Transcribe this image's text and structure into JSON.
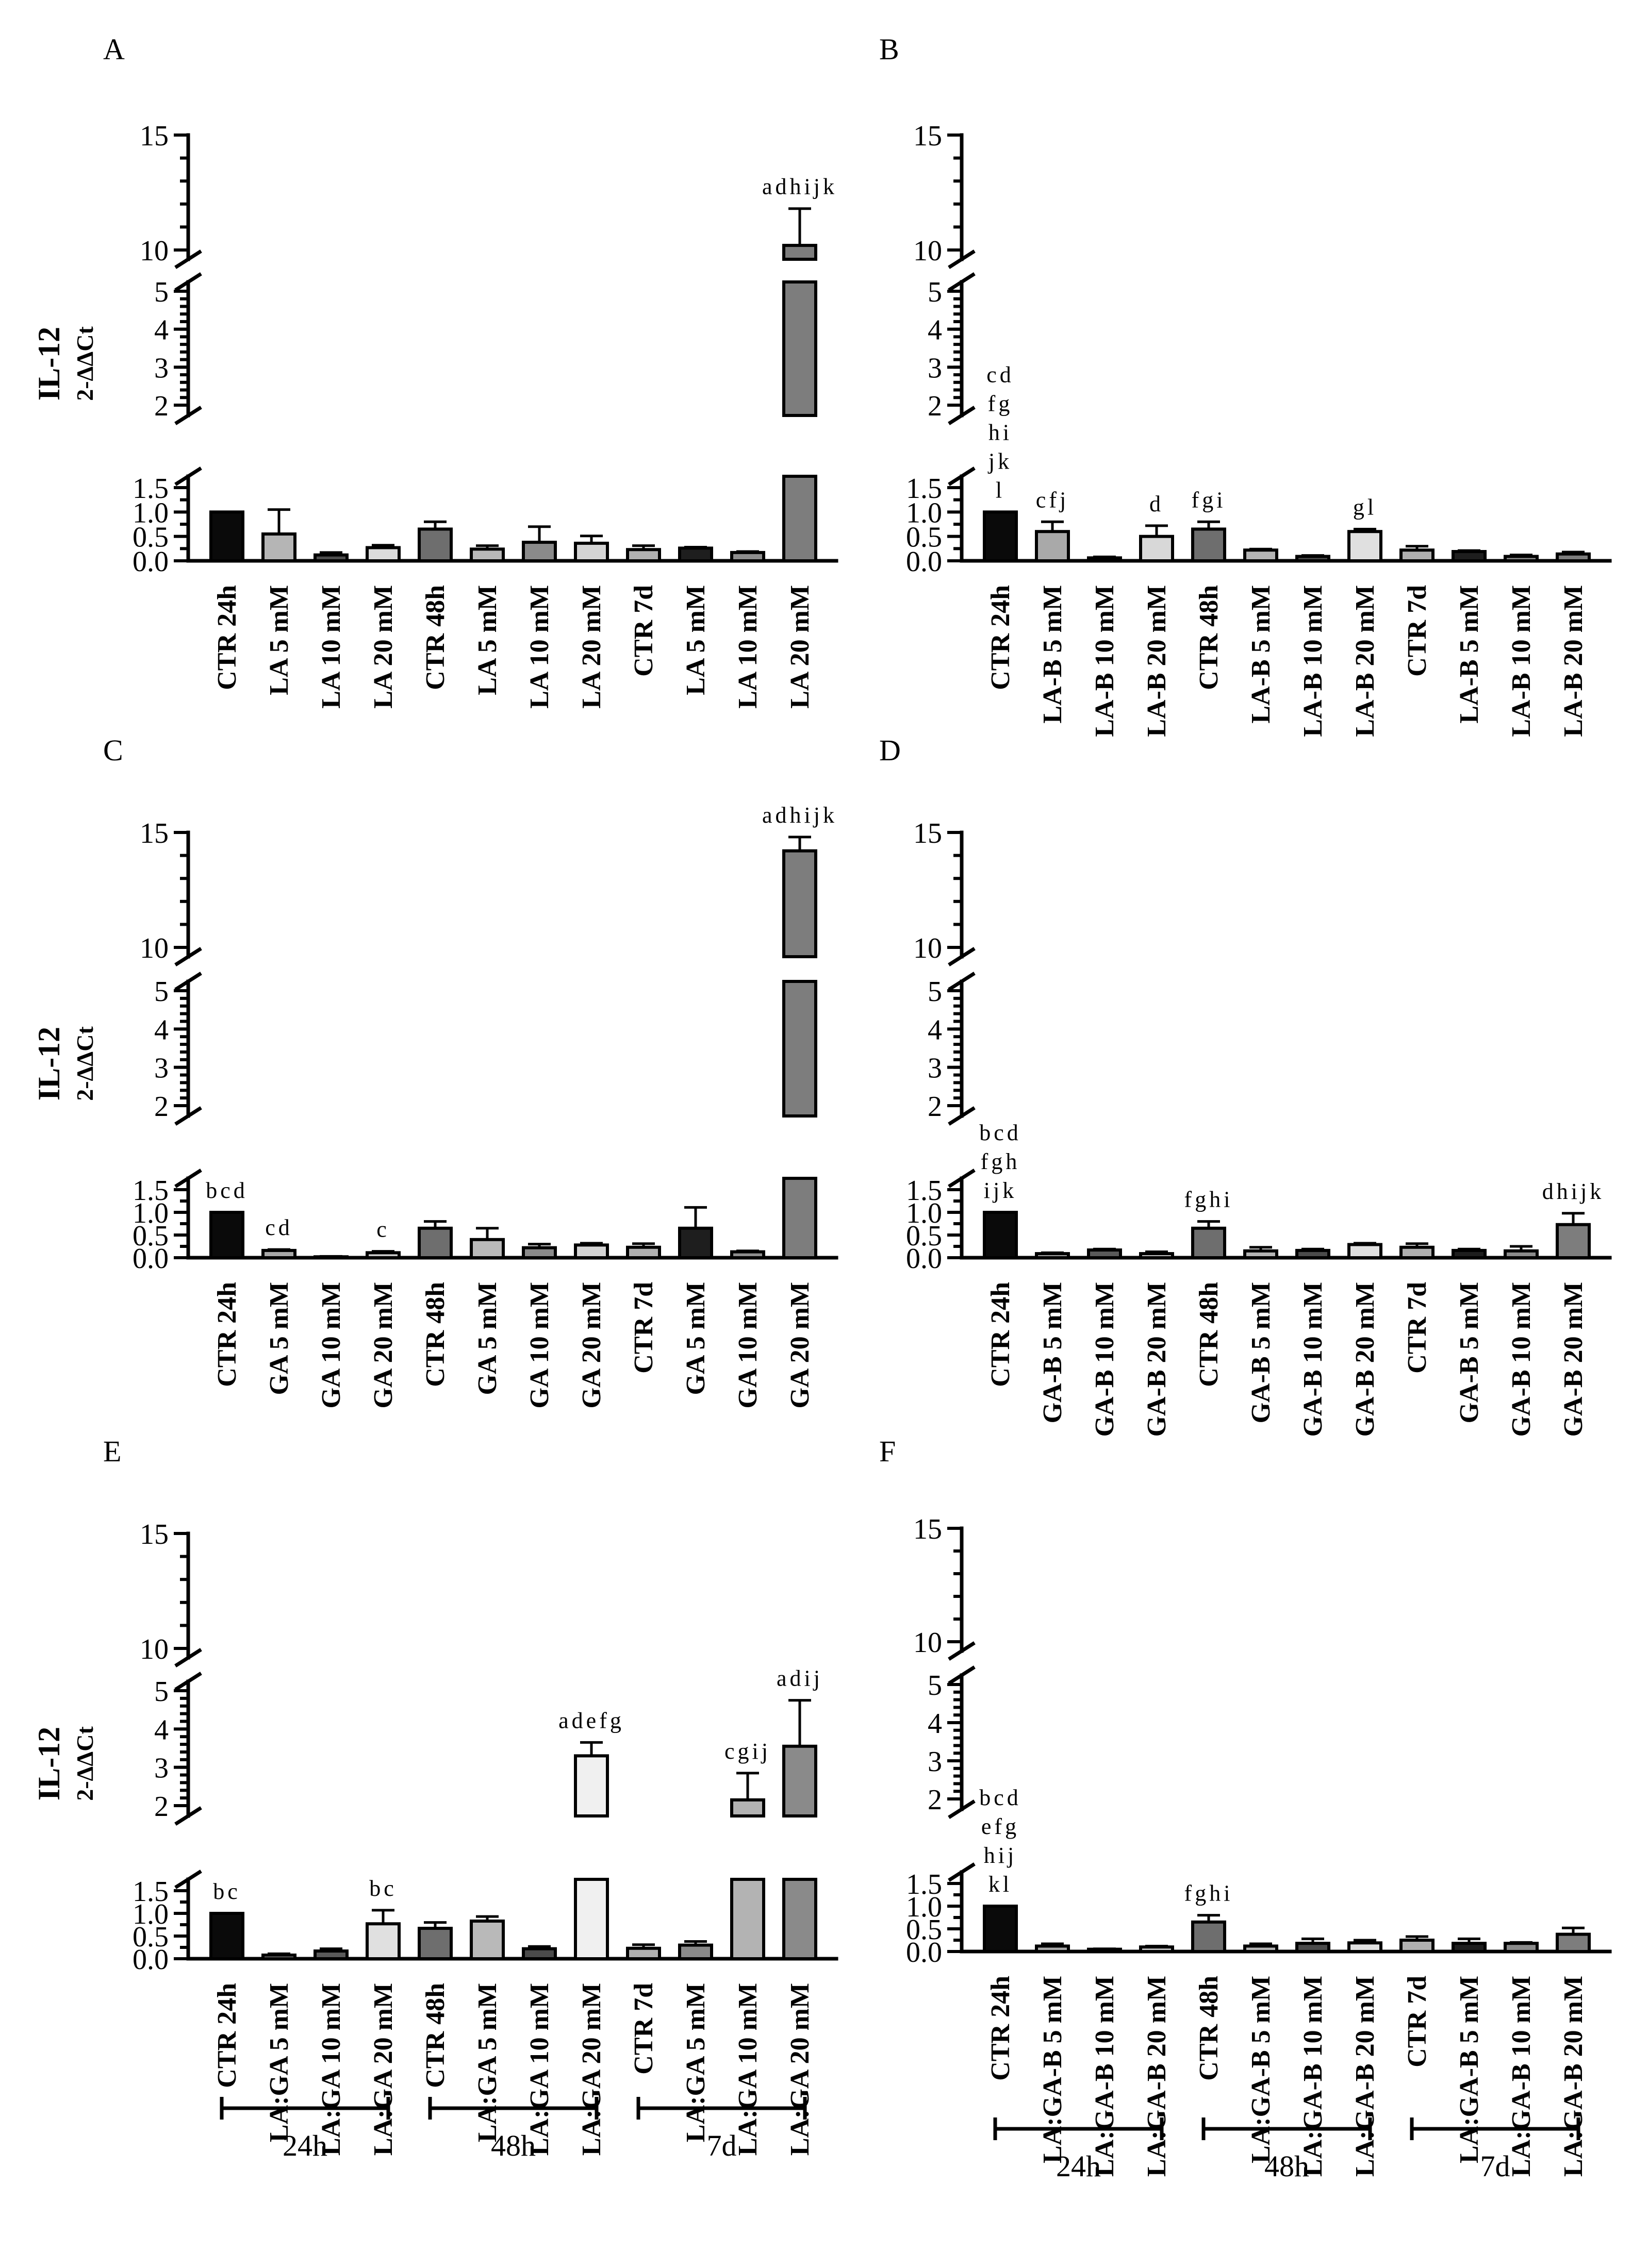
{
  "chart_data": [
    {
      "panel_label": "A",
      "type": "bar",
      "ylabel": "IL-12",
      "ylabel_sub": "2-ΔΔCt",
      "y_ticks": [
        "0.0",
        "0.5",
        "1.0",
        "1.5",
        "2",
        "3",
        "4",
        "5",
        "10",
        "15"
      ],
      "ylim": [
        0,
        15
      ],
      "y_axis_break": true,
      "categories": [
        "CTR 24h",
        "LA 5 mM",
        "LA 10 mM",
        "LA 20 mM",
        "CTR 48h",
        "LA 5 mM",
        "LA 10 mM",
        "LA 20 mM",
        "CTR 7d",
        "LA 5 mM",
        "LA 10 mM",
        "LA 20 mM"
      ],
      "values": [
        1.0,
        0.55,
        0.12,
        0.27,
        0.65,
        0.24,
        0.38,
        0.36,
        0.23,
        0.26,
        0.17,
        10.2
      ],
      "errors": [
        0,
        0.5,
        0.05,
        0.05,
        0.15,
        0.07,
        0.32,
        0.15,
        0.08,
        0.02,
        0.02,
        1.6
      ],
      "colors": [
        "#0a0a0a",
        "#b5b5b5",
        "#4d4d4d",
        "#dcdcdc",
        "#6e6e6e",
        "#b9b9b9",
        "#8a8a8a",
        "#d4d4d4",
        "#b0b0b0",
        "#1e1e1e",
        "#8e8e8e",
        "#7d7d7d"
      ],
      "annotations": [
        "",
        "",
        "",
        "",
        "",
        "",
        "",
        "",
        "",
        "",
        "",
        "adhijk"
      ],
      "groups": []
    },
    {
      "panel_label": "B",
      "type": "bar",
      "ylabel": "",
      "ylabel_sub": "",
      "y_ticks": [
        "0.0",
        "0.5",
        "1.0",
        "1.5",
        "2",
        "3",
        "4",
        "5",
        "10",
        "15"
      ],
      "ylim": [
        0,
        15
      ],
      "y_axis_break": true,
      "categories": [
        "CTR 24h",
        "LA-B 5 mM",
        "LA-B 10 mM",
        "LA-B 20 mM",
        "CTR 48h",
        "LA-B 5 mM",
        "LA-B 10 mM",
        "LA-B 20 mM",
        "CTR 7d",
        "LA-B 5 mM",
        "LA-B 10 mM",
        "LA-B 20 mM"
      ],
      "values": [
        1.0,
        0.6,
        0.06,
        0.5,
        0.65,
        0.22,
        0.09,
        0.6,
        0.22,
        0.19,
        0.09,
        0.14
      ],
      "errors": [
        0,
        0.2,
        0.02,
        0.22,
        0.15,
        0.02,
        0.02,
        0.05,
        0.08,
        0.02,
        0.03,
        0.04
      ],
      "colors": [
        "#0a0a0a",
        "#a9a9a9",
        "#5a5a5a",
        "#d8d8d8",
        "#6e6e6e",
        "#b5b5b5",
        "#4b4b4b",
        "#e0e0e0",
        "#b0b0b0",
        "#1e1e1e",
        "#8a8a8a",
        "#7d7d7d"
      ],
      "annotations": [
        "cd\nfg\nhi\njk\nl",
        "cfj",
        "",
        "d",
        "fgi",
        "",
        "",
        "gl",
        "",
        "",
        "",
        ""
      ],
      "groups": []
    },
    {
      "panel_label": "C",
      "type": "bar",
      "ylabel": "IL-12",
      "ylabel_sub": "2-ΔΔCt",
      "y_ticks": [
        "0.0",
        "0.5",
        "1.0",
        "1.5",
        "2",
        "3",
        "4",
        "5",
        "10",
        "15"
      ],
      "ylim": [
        0,
        15
      ],
      "y_axis_break": true,
      "categories": [
        "CTR 24h",
        "GA 5 mM",
        "GA 10 mM",
        "GA 20 mM",
        "CTR 48h",
        "GA 5 mM",
        "GA 10 mM",
        "GA 20 mM",
        "CTR 7d",
        "GA 5 mM",
        "GA 10 mM",
        "GA 20 mM"
      ],
      "values": [
        1.0,
        0.16,
        0.02,
        0.11,
        0.65,
        0.4,
        0.22,
        0.28,
        0.23,
        0.65,
        0.13,
        14.2
      ],
      "errors": [
        0,
        0.02,
        0.01,
        0.03,
        0.15,
        0.25,
        0.08,
        0.04,
        0.08,
        0.46,
        0.02,
        0.6
      ],
      "colors": [
        "#0a0a0a",
        "#a9a9a9",
        "#5a5a5a",
        "#c8c8c8",
        "#6e6e6e",
        "#b9b9b9",
        "#8a8a8a",
        "#d4d4d4",
        "#b0b0b0",
        "#1e1e1e",
        "#8e8e8e",
        "#7d7d7d"
      ],
      "annotations": [
        "bcd",
        "cd",
        "",
        "c",
        "",
        "",
        "",
        "",
        "",
        "",
        "",
        "adhijk"
      ],
      "groups": []
    },
    {
      "panel_label": "D",
      "type": "bar",
      "ylabel": "",
      "ylabel_sub": "",
      "y_ticks": [
        "0.0",
        "0.5",
        "1.0",
        "1.5",
        "2",
        "3",
        "4",
        "5",
        "10",
        "15"
      ],
      "ylim": [
        0,
        15
      ],
      "y_axis_break": true,
      "categories": [
        "CTR 24h",
        "GA-B 5 mM",
        "GA-B 10 mM",
        "GA-B 20 mM",
        "CTR 48h",
        "GA-B 5 mM",
        "GA-B 10 mM",
        "GA-B 20 mM",
        "CTR 7d",
        "GA-B 5 mM",
        "GA-B 10 mM",
        "GA-B 20 mM"
      ],
      "values": [
        1.0,
        0.09,
        0.17,
        0.09,
        0.65,
        0.15,
        0.16,
        0.29,
        0.23,
        0.16,
        0.15,
        0.73
      ],
      "errors": [
        0,
        0.02,
        0.02,
        0.04,
        0.15,
        0.08,
        0.03,
        0.03,
        0.08,
        0.03,
        0.1,
        0.25
      ],
      "colors": [
        "#0a0a0a",
        "#a9a9a9",
        "#5a5a5a",
        "#c8c8c8",
        "#6e6e6e",
        "#b5b5b5",
        "#4b4b4b",
        "#e0e0e0",
        "#b0b0b0",
        "#1e1e1e",
        "#8a8a8a",
        "#7d7d7d"
      ],
      "annotations": [
        "bcd\nfgh\nijk",
        "",
        "",
        "",
        "fghi",
        "",
        "",
        "",
        "",
        "",
        "",
        "dhijk"
      ],
      "groups": []
    },
    {
      "panel_label": "E",
      "type": "bar",
      "ylabel": "IL-12",
      "ylabel_sub": "2-ΔΔCt",
      "y_ticks": [
        "0.0",
        "0.5",
        "1.0",
        "1.5",
        "2",
        "3",
        "4",
        "5",
        "10",
        "15"
      ],
      "ylim": [
        0,
        15
      ],
      "y_axis_break": true,
      "categories": [
        "CTR 24h",
        "LA:GA 5 mM",
        "LA:GA 10 mM",
        "LA:GA 20 mM",
        "CTR 48h",
        "LA:GA 5 mM",
        "LA:GA 10 mM",
        "LA:GA 20 mM",
        "CTR 7d",
        "LA:GA 5 mM",
        "LA:GA 10 mM",
        "LA:GA 20 mM"
      ],
      "values": [
        1.0,
        0.08,
        0.17,
        0.77,
        0.67,
        0.83,
        0.22,
        3.3,
        0.23,
        0.3,
        2.15,
        3.55
      ],
      "errors": [
        0,
        0.03,
        0.05,
        0.3,
        0.13,
        0.1,
        0.05,
        0.35,
        0.08,
        0.08,
        0.7,
        1.2
      ],
      "colors": [
        "#0a0a0a",
        "#a9a9a9",
        "#5a5a5a",
        "#e0e0e0",
        "#6e6e6e",
        "#b9b9b9",
        "#4b4b4b",
        "#f0f0f0",
        "#b0b0b0",
        "#8a8a8a",
        "#b3b3b3",
        "#8a8a8a"
      ],
      "annotations": [
        "bc",
        "",
        "",
        "bc",
        "",
        "",
        "",
        "adefg",
        "",
        "",
        "cgij",
        "adij"
      ],
      "groups": [
        {
          "label": "24h",
          "from": 0,
          "to": 3
        },
        {
          "label": "48h",
          "from": 4,
          "to": 7
        },
        {
          "label": "7d",
          "from": 8,
          "to": 11
        }
      ]
    },
    {
      "panel_label": "F",
      "type": "bar",
      "ylabel": "",
      "ylabel_sub": "",
      "y_ticks": [
        "0.0",
        "0.5",
        "1.0",
        "1.5",
        "2",
        "3",
        "4",
        "5",
        "10",
        "15"
      ],
      "ylim": [
        0,
        15
      ],
      "y_axis_break": true,
      "categories": [
        "CTR 24h",
        "LA:GA-B 5 mM",
        "LA:GA-B 10 mM",
        "LA:GA-B 20 mM",
        "CTR 48h",
        "LA:GA-B 5 mM",
        "LA:GA-B 10 mM",
        "LA:GA-B 20 mM",
        "CTR 7d",
        "LA:GA-B 5 mM",
        "LA:GA-B 10 mM",
        "LA:GA-B 20 mM"
      ],
      "values": [
        1.0,
        0.12,
        0.05,
        0.1,
        0.65,
        0.12,
        0.18,
        0.19,
        0.25,
        0.18,
        0.18,
        0.38
      ],
      "errors": [
        0,
        0.05,
        0.01,
        0.02,
        0.15,
        0.05,
        0.1,
        0.06,
        0.08,
        0.1,
        0.02,
        0.14
      ],
      "colors": [
        "#0a0a0a",
        "#a9a9a9",
        "#5a5a5a",
        "#c8c8c8",
        "#6e6e6e",
        "#b5b5b5",
        "#4b4b4b",
        "#e0e0e0",
        "#b0b0b0",
        "#1e1e1e",
        "#8a8a8a",
        "#7d7d7d"
      ],
      "annotations": [
        "bcd\nefg\nhij\nkl",
        "",
        "",
        "",
        "fghi",
        "",
        "",
        "",
        "",
        "",
        "",
        ""
      ],
      "groups": [
        {
          "label": "24h",
          "from": 0,
          "to": 3
        },
        {
          "label": "48h",
          "from": 4,
          "to": 7
        },
        {
          "label": "7d",
          "from": 8,
          "to": 11
        }
      ]
    }
  ]
}
